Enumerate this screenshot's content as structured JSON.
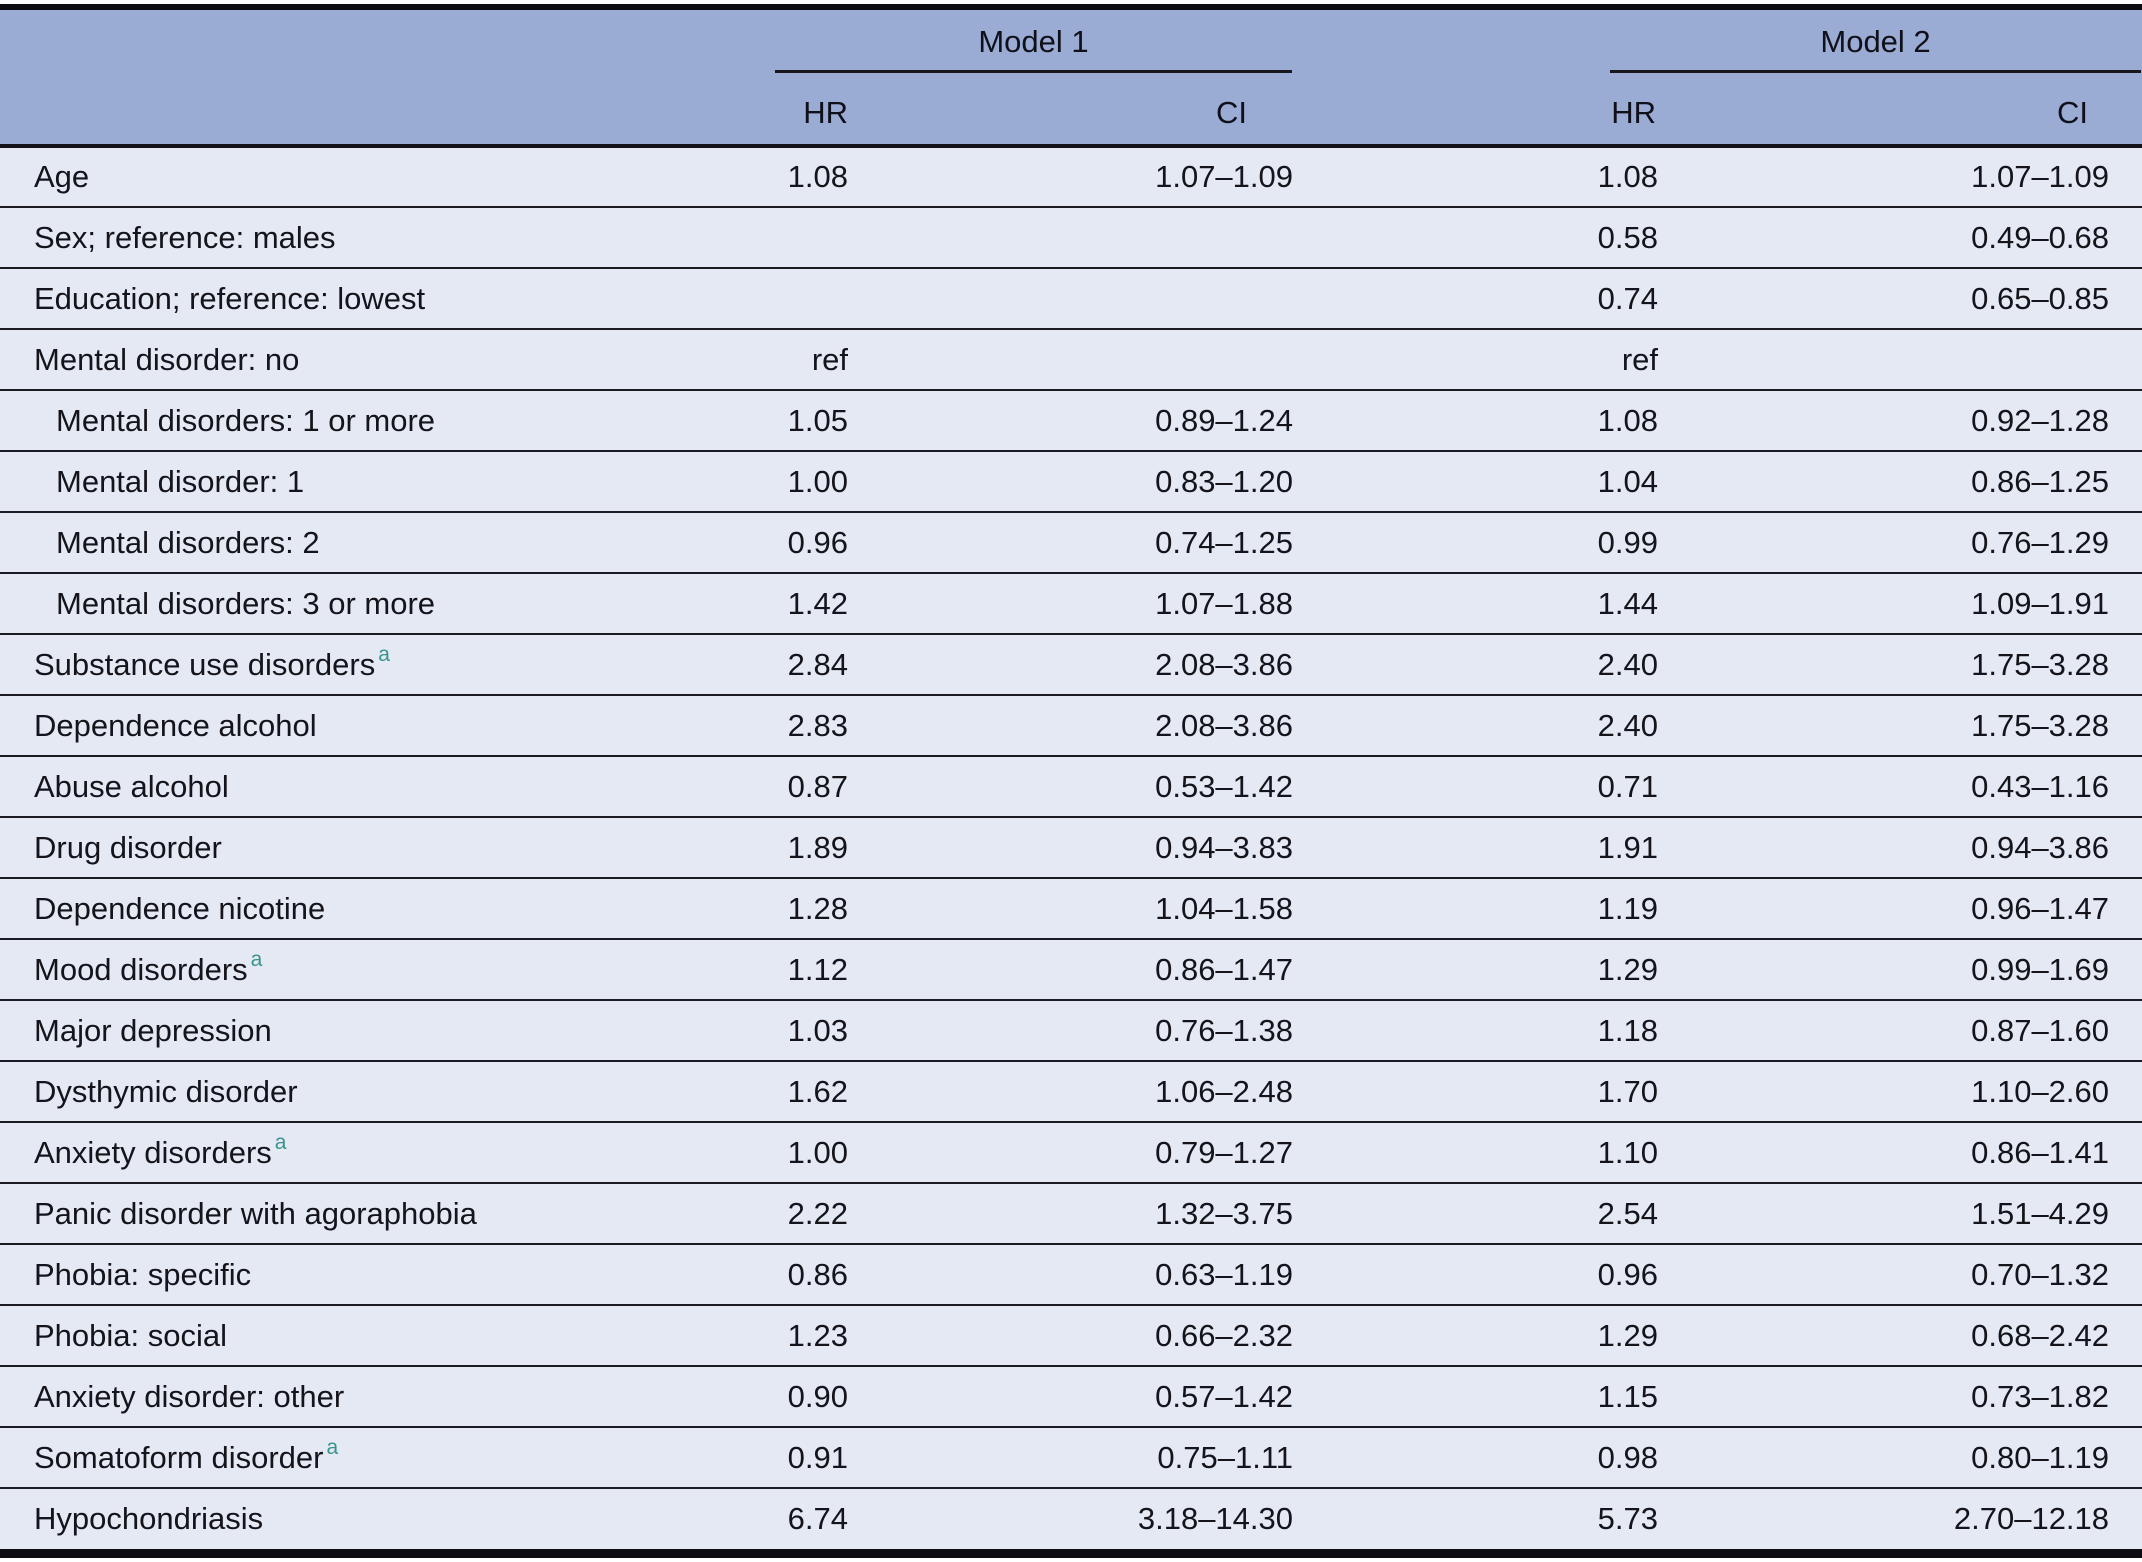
{
  "table": {
    "header": {
      "model1_label": "Model 1",
      "model2_label": "Model 2",
      "m1_hr_label": "HR",
      "m1_ci_label": "CI",
      "m2_hr_label": "HR",
      "m2_ci_label": "CI"
    },
    "colors": {
      "header_bg": "#9aabd4",
      "row_bg": "#e4e9f4",
      "rule_line": "#17171c",
      "heavy_border": "#0c0c12",
      "footnote_marker": "#38948d",
      "text": "#14141a"
    },
    "footnote_marker_glyph": "a",
    "rows": [
      {
        "label": "Age",
        "sup": "",
        "indent": false,
        "m1_hr": "1.08",
        "m1_ci": "1.07–1.09",
        "m2_hr": "1.08",
        "m2_ci": "1.07–1.09"
      },
      {
        "label": "Sex; reference: males",
        "sup": "",
        "indent": false,
        "m1_hr": "",
        "m1_ci": "",
        "m2_hr": "0.58",
        "m2_ci": "0.49–0.68"
      },
      {
        "label": "Education; reference: lowest",
        "sup": "",
        "indent": false,
        "m1_hr": "",
        "m1_ci": "",
        "m2_hr": "0.74",
        "m2_ci": "0.65–0.85"
      },
      {
        "label": "Mental disorder: no",
        "sup": "",
        "indent": false,
        "m1_hr": "ref",
        "m1_ci": "",
        "m2_hr": "ref",
        "m2_ci": ""
      },
      {
        "label": "Mental disorders: 1 or more",
        "sup": "",
        "indent": true,
        "m1_hr": "1.05",
        "m1_ci": "0.89–1.24",
        "m2_hr": "1.08",
        "m2_ci": "0.92–1.28"
      },
      {
        "label": "Mental disorder: 1",
        "sup": "",
        "indent": true,
        "m1_hr": "1.00",
        "m1_ci": "0.83–1.20",
        "m2_hr": "1.04",
        "m2_ci": "0.86–1.25"
      },
      {
        "label": "Mental disorders: 2",
        "sup": "",
        "indent": true,
        "m1_hr": "0.96",
        "m1_ci": "0.74–1.25",
        "m2_hr": "0.99",
        "m2_ci": "0.76–1.29"
      },
      {
        "label": "Mental disorders: 3 or more",
        "sup": "",
        "indent": true,
        "m1_hr": "1.42",
        "m1_ci": "1.07–1.88",
        "m2_hr": "1.44",
        "m2_ci": "1.09–1.91"
      },
      {
        "label": "Substance use disorders",
        "sup": "a",
        "indent": false,
        "m1_hr": "2.84",
        "m1_ci": "2.08–3.86",
        "m2_hr": "2.40",
        "m2_ci": "1.75–3.28"
      },
      {
        "label": "Dependence alcohol",
        "sup": "",
        "indent": false,
        "m1_hr": "2.83",
        "m1_ci": "2.08–3.86",
        "m2_hr": "2.40",
        "m2_ci": "1.75–3.28"
      },
      {
        "label": "Abuse alcohol",
        "sup": "",
        "indent": false,
        "m1_hr": "0.87",
        "m1_ci": "0.53–1.42",
        "m2_hr": "0.71",
        "m2_ci": "0.43–1.16"
      },
      {
        "label": "Drug disorder",
        "sup": "",
        "indent": false,
        "m1_hr": "1.89",
        "m1_ci": "0.94–3.83",
        "m2_hr": "1.91",
        "m2_ci": "0.94–3.86"
      },
      {
        "label": "Dependence nicotine",
        "sup": "",
        "indent": false,
        "m1_hr": "1.28",
        "m1_ci": "1.04–1.58",
        "m2_hr": "1.19",
        "m2_ci": "0.96–1.47"
      },
      {
        "label": "Mood disorders",
        "sup": "a",
        "indent": false,
        "m1_hr": "1.12",
        "m1_ci": "0.86–1.47",
        "m2_hr": "1.29",
        "m2_ci": "0.99–1.69"
      },
      {
        "label": "Major depression",
        "sup": "",
        "indent": false,
        "m1_hr": "1.03",
        "m1_ci": "0.76–1.38",
        "m2_hr": "1.18",
        "m2_ci": "0.87–1.60"
      },
      {
        "label": "Dysthymic disorder",
        "sup": "",
        "indent": false,
        "m1_hr": "1.62",
        "m1_ci": "1.06–2.48",
        "m2_hr": "1.70",
        "m2_ci": "1.10–2.60"
      },
      {
        "label": "Anxiety disorders",
        "sup": "a",
        "indent": false,
        "m1_hr": "1.00",
        "m1_ci": "0.79–1.27",
        "m2_hr": "1.10",
        "m2_ci": "0.86–1.41"
      },
      {
        "label": "Panic disorder with agoraphobia",
        "sup": "",
        "indent": false,
        "m1_hr": "2.22",
        "m1_ci": "1.32–3.75",
        "m2_hr": "2.54",
        "m2_ci": "1.51–4.29"
      },
      {
        "label": "Phobia: specific",
        "sup": "",
        "indent": false,
        "m1_hr": "0.86",
        "m1_ci": "0.63–1.19",
        "m2_hr": "0.96",
        "m2_ci": "0.70–1.32"
      },
      {
        "label": "Phobia: social",
        "sup": "",
        "indent": false,
        "m1_hr": "1.23",
        "m1_ci": "0.66–2.32",
        "m2_hr": "1.29",
        "m2_ci": "0.68–2.42"
      },
      {
        "label": "Anxiety disorder: other",
        "sup": "",
        "indent": false,
        "m1_hr": "0.90",
        "m1_ci": "0.57–1.42",
        "m2_hr": "1.15",
        "m2_ci": "0.73–1.82"
      },
      {
        "label": "Somatoform disorder",
        "sup": "a",
        "indent": false,
        "m1_hr": "0.91",
        "m1_ci": "0.75–1.11",
        "m2_hr": "0.98",
        "m2_ci": "0.80–1.19"
      },
      {
        "label": "Hypochondriasis",
        "sup": "",
        "indent": false,
        "m1_hr": "6.74",
        "m1_ci": "3.18–14.30",
        "m2_hr": "5.73",
        "m2_ci": "2.70–12.18"
      }
    ]
  }
}
